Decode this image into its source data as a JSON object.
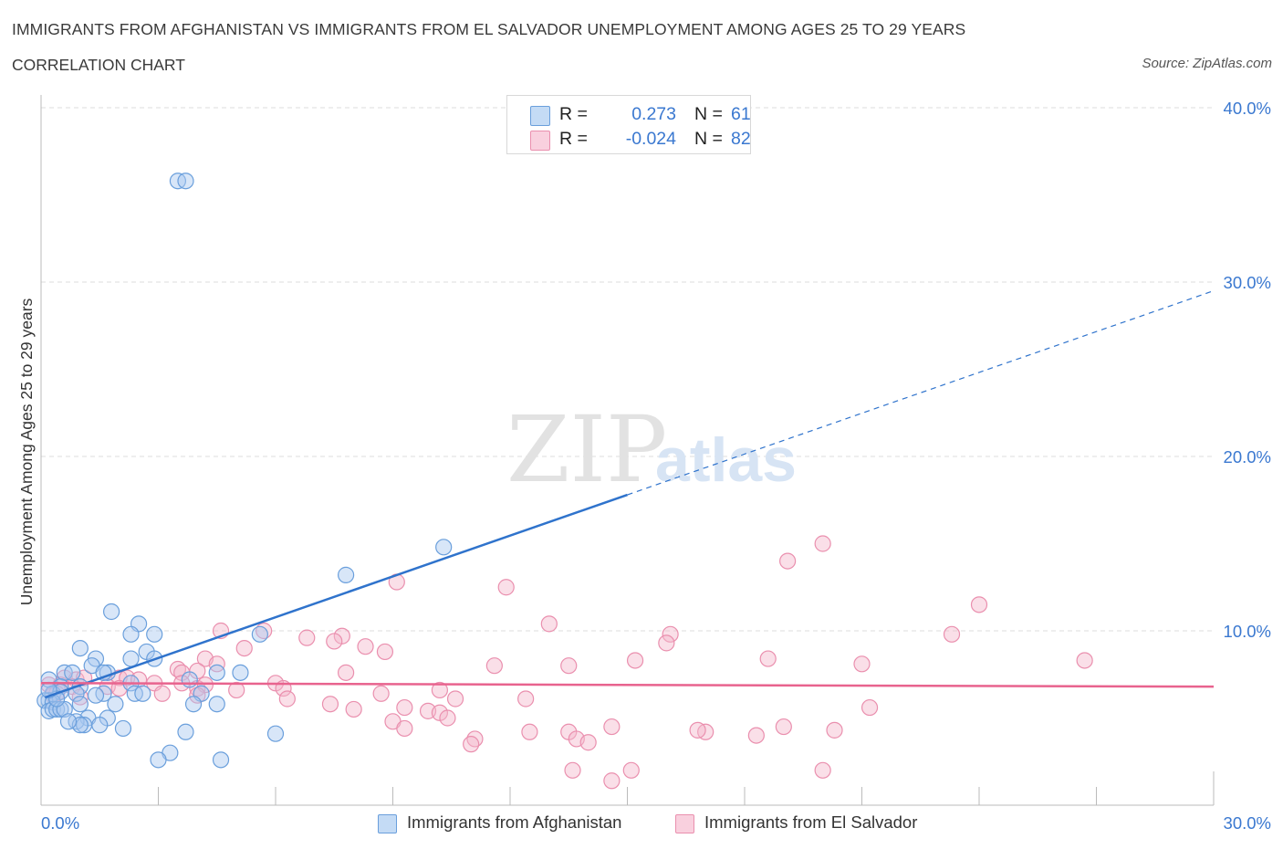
{
  "header": {
    "title": "IMMIGRANTS FROM AFGHANISTAN VS IMMIGRANTS FROM EL SALVADOR UNEMPLOYMENT AMONG AGES 25 TO 29 YEARS",
    "subtitle": "CORRELATION CHART",
    "source": "Source: ZipAtlas.com"
  },
  "watermark": {
    "zip": "ZIP",
    "atlas": "atlas"
  },
  "stats_legend": {
    "rows": [
      {
        "r_label": "R =",
        "r_value": "0.273",
        "n_label": "N =",
        "n_value": "61"
      },
      {
        "r_label": "R =",
        "r_value": "-0.024",
        "n_label": "N =",
        "n_value": "82"
      }
    ]
  },
  "colors": {
    "afghanistan_fill": "#a8c8f0",
    "afghanistan_stroke": "#6a9fdc",
    "afghanistan_line": "#2f73cc",
    "elsalvador_fill": "#f5b8cc",
    "elsalvador_stroke": "#ea8fae",
    "elsalvador_line": "#e8638e",
    "axis_label": "#3a78d0",
    "grid": "#dddddd"
  },
  "chart_data": {
    "type": "scatter",
    "title": "IMMIGRANTS FROM AFGHANISTAN VS IMMIGRANTS FROM EL SALVADOR UNEMPLOYMENT AMONG AGES 25 TO 29 YEARS",
    "xlabel": "",
    "ylabel": "Unemployment Among Ages 25 to 29 years",
    "xlim": [
      0,
      30
    ],
    "ylim": [
      0,
      40
    ],
    "x_tick_labels": [
      "0.0%",
      "30.0%"
    ],
    "y_tick_labels": [
      {
        "value": 10,
        "label": "10.0%"
      },
      {
        "value": 20,
        "label": "20.0%"
      },
      {
        "value": 30,
        "label": "30.0%"
      },
      {
        "value": 40,
        "label": "40.0%"
      }
    ],
    "grid": true,
    "legend": [
      "Immigrants from Afghanistan",
      "Immigrants from El Salvador"
    ],
    "series": [
      {
        "name": "Immigrants from Afghanistan",
        "r": 0.273,
        "n": 61,
        "trend": {
          "solid_x": [
            0.1,
            15.0
          ],
          "dashed_x": [
            15.0,
            30.0
          ],
          "intercept": 6.1,
          "slope": 0.78
        },
        "points": [
          [
            3.5,
            35.8
          ],
          [
            3.7,
            35.8
          ],
          [
            10.3,
            14.8
          ],
          [
            7.8,
            13.2
          ],
          [
            1.8,
            11.1
          ],
          [
            2.5,
            10.4
          ],
          [
            2.3,
            9.8
          ],
          [
            2.9,
            9.8
          ],
          [
            5.6,
            9.8
          ],
          [
            1.0,
            9.0
          ],
          [
            2.7,
            8.8
          ],
          [
            1.4,
            8.4
          ],
          [
            2.3,
            8.4
          ],
          [
            2.9,
            8.4
          ],
          [
            1.3,
            8.0
          ],
          [
            0.6,
            7.6
          ],
          [
            0.8,
            7.6
          ],
          [
            1.7,
            7.6
          ],
          [
            1.6,
            7.6
          ],
          [
            4.5,
            7.6
          ],
          [
            5.1,
            7.6
          ],
          [
            3.8,
            7.2
          ],
          [
            2.3,
            7.0
          ],
          [
            1.0,
            6.8
          ],
          [
            0.2,
            7.2
          ],
          [
            0.5,
            6.8
          ],
          [
            0.3,
            6.4
          ],
          [
            0.5,
            6.5
          ],
          [
            0.9,
            6.4
          ],
          [
            1.6,
            6.4
          ],
          [
            1.4,
            6.3
          ],
          [
            2.4,
            6.4
          ],
          [
            2.6,
            6.4
          ],
          [
            4.1,
            6.4
          ],
          [
            0.2,
            6.0
          ],
          [
            0.1,
            6.0
          ],
          [
            0.3,
            5.9
          ],
          [
            1.0,
            5.8
          ],
          [
            1.9,
            5.8
          ],
          [
            3.9,
            5.8
          ],
          [
            4.5,
            5.8
          ],
          [
            0.2,
            5.4
          ],
          [
            0.3,
            5.5
          ],
          [
            0.4,
            5.5
          ],
          [
            0.5,
            5.5
          ],
          [
            0.6,
            5.5
          ],
          [
            1.2,
            5.0
          ],
          [
            1.7,
            5.0
          ],
          [
            0.9,
            4.8
          ],
          [
            1.1,
            4.6
          ],
          [
            1.0,
            4.6
          ],
          [
            1.5,
            4.6
          ],
          [
            2.1,
            4.4
          ],
          [
            3.7,
            4.2
          ],
          [
            6.0,
            4.1
          ],
          [
            3.3,
            3.0
          ],
          [
            3.0,
            2.6
          ],
          [
            4.6,
            2.6
          ],
          [
            0.7,
            4.8
          ],
          [
            0.4,
            6.1
          ],
          [
            0.2,
            6.6
          ]
        ]
      },
      {
        "name": "Immigrants from El Salvador",
        "r": -0.024,
        "n": 82,
        "trend": {
          "x": [
            0.0,
            30.0
          ],
          "intercept": 7.0,
          "slope": -0.0067
        },
        "points": [
          [
            20.0,
            15.0
          ],
          [
            19.1,
            14.0
          ],
          [
            9.1,
            12.8
          ],
          [
            11.9,
            12.5
          ],
          [
            24.0,
            11.5
          ],
          [
            13.0,
            10.4
          ],
          [
            4.6,
            10.0
          ],
          [
            5.7,
            10.0
          ],
          [
            23.3,
            9.8
          ],
          [
            16.1,
            9.8
          ],
          [
            7.7,
            9.7
          ],
          [
            6.8,
            9.6
          ],
          [
            16.0,
            9.3
          ],
          [
            7.5,
            9.4
          ],
          [
            5.2,
            9.0
          ],
          [
            8.3,
            9.1
          ],
          [
            8.8,
            8.8
          ],
          [
            4.2,
            8.4
          ],
          [
            18.6,
            8.4
          ],
          [
            26.7,
            8.3
          ],
          [
            15.2,
            8.3
          ],
          [
            4.5,
            8.1
          ],
          [
            11.6,
            8.0
          ],
          [
            13.5,
            8.0
          ],
          [
            21.0,
            8.1
          ],
          [
            3.5,
            7.8
          ],
          [
            4.0,
            7.7
          ],
          [
            7.8,
            7.6
          ],
          [
            3.6,
            7.6
          ],
          [
            2.0,
            7.3
          ],
          [
            0.6,
            7.3
          ],
          [
            0.9,
            7.2
          ],
          [
            1.1,
            7.3
          ],
          [
            2.2,
            7.3
          ],
          [
            2.5,
            7.2
          ],
          [
            3.6,
            7.0
          ],
          [
            2.9,
            7.0
          ],
          [
            6.0,
            7.0
          ],
          [
            0.2,
            6.9
          ],
          [
            0.5,
            6.9
          ],
          [
            0.8,
            6.8
          ],
          [
            1.7,
            6.8
          ],
          [
            2.0,
            6.7
          ],
          [
            4.0,
            6.7
          ],
          [
            4.2,
            6.9
          ],
          [
            6.2,
            6.7
          ],
          [
            10.2,
            6.6
          ],
          [
            5.0,
            6.6
          ],
          [
            1.0,
            6.2
          ],
          [
            0.3,
            6.3
          ],
          [
            0.4,
            6.4
          ],
          [
            3.1,
            6.4
          ],
          [
            4.0,
            6.3
          ],
          [
            6.3,
            6.1
          ],
          [
            10.6,
            6.1
          ],
          [
            8.7,
            6.4
          ],
          [
            12.4,
            6.1
          ],
          [
            7.4,
            5.8
          ],
          [
            21.2,
            5.6
          ],
          [
            9.3,
            5.6
          ],
          [
            8.0,
            5.5
          ],
          [
            9.9,
            5.4
          ],
          [
            10.2,
            5.3
          ],
          [
            10.4,
            5.0
          ],
          [
            9.0,
            4.8
          ],
          [
            17.0,
            4.2
          ],
          [
            16.8,
            4.3
          ],
          [
            19.0,
            4.5
          ],
          [
            20.3,
            4.3
          ],
          [
            12.5,
            4.2
          ],
          [
            9.3,
            4.4
          ],
          [
            14.6,
            4.5
          ],
          [
            18.3,
            4.0
          ],
          [
            11.1,
            3.8
          ],
          [
            13.5,
            4.2
          ],
          [
            13.7,
            3.8
          ],
          [
            14.0,
            3.6
          ],
          [
            11.0,
            3.5
          ],
          [
            20.0,
            2.0
          ],
          [
            15.1,
            2.0
          ],
          [
            14.6,
            1.4
          ],
          [
            13.6,
            2.0
          ]
        ]
      }
    ]
  },
  "bottom_legend": {
    "afghanistan": "Immigrants from Afghanistan",
    "elsalvador": "Immigrants from El Salvador"
  }
}
